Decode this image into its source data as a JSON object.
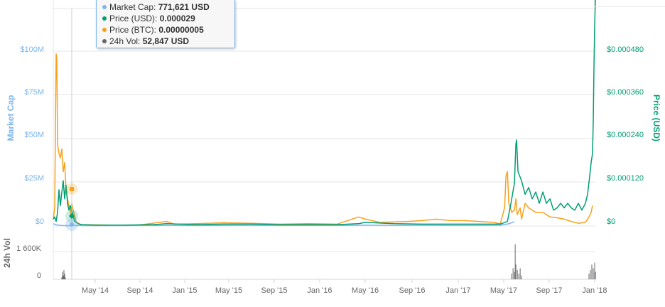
{
  "tooltip": {
    "rows": [
      {
        "label": "Market Cap:",
        "value": "771,621 USD",
        "color": "#7cb5ec"
      },
      {
        "label": "Price (USD):",
        "value": "0.000029",
        "color": "#009e73"
      },
      {
        "label": "Price (BTC):",
        "value": "0.00000005",
        "color": "#f7a21b"
      },
      {
        "label": "24h Vol:",
        "value": "52,847 USD",
        "color": "#666666"
      }
    ]
  },
  "chart_data": {
    "type": "line",
    "x_ticks": [
      "May '14",
      "Sep '14",
      "Jan '15",
      "May '15",
      "Sep '15",
      "Jan '16",
      "May '16",
      "Sep '16",
      "Jan '17",
      "May '17",
      "Sep '17",
      "Jan '18"
    ],
    "left_axis": {
      "label": "Market Cap",
      "ticks": [
        "$0",
        "$25M",
        "$50M",
        "$75M",
        "$100M"
      ],
      "range": [
        0,
        100000000
      ],
      "color": "#7cb5ec"
    },
    "right_axis": {
      "label": "Price (USD)",
      "ticks": [
        "$0",
        "$0.000120",
        "$0.000240",
        "$0.000360",
        "$0.000480"
      ],
      "range": [
        0,
        0.00048
      ],
      "color": "#009e73"
    },
    "volume_axis": {
      "label": "24h Vol",
      "ticks": [
        "0",
        "1 600K"
      ]
    },
    "series": [
      {
        "name": "Market Cap",
        "color": "#7cb5ec",
        "points": [
          [
            0,
            1000000
          ],
          [
            5,
            500000
          ],
          [
            10,
            300000
          ],
          [
            14,
            200000
          ],
          [
            18,
            150000
          ],
          [
            20,
            120000
          ],
          [
            22,
            100000
          ],
          [
            25,
            150000
          ],
          [
            27,
            771621
          ],
          [
            30,
            300000
          ],
          [
            40,
            200000
          ],
          [
            60,
            150000
          ],
          [
            100,
            200000
          ],
          [
            140,
            250000
          ],
          [
            160,
            300000
          ],
          [
            200,
            200000
          ],
          [
            240,
            250000
          ],
          [
            280,
            300000
          ],
          [
            320,
            250000
          ],
          [
            360,
            300000
          ],
          [
            400,
            250000
          ],
          [
            440,
            400000
          ],
          [
            480,
            300000
          ],
          [
            520,
            350000
          ],
          [
            560,
            300000
          ],
          [
            600,
            300000
          ],
          [
            630,
            350000
          ],
          [
            642,
            1000000
          ],
          [
            650,
            2000000
          ]
        ]
      },
      {
        "name": "Price (USD)",
        "color": "#009e73",
        "points": [
          [
            0,
            1.5e-05
          ],
          [
            2,
            2e-05
          ],
          [
            4,
            1e-05
          ],
          [
            6,
            3e-05
          ],
          [
            8,
            8e-05
          ],
          [
            10,
            4.5e-05
          ],
          [
            12,
            7.5e-05
          ],
          [
            14,
            0.0001
          ],
          [
            16,
            6e-05
          ],
          [
            18,
            9e-05
          ],
          [
            20,
            5e-05
          ],
          [
            22,
            3.5e-05
          ],
          [
            24,
            4.5e-05
          ],
          [
            26,
            3.3e-05
          ],
          [
            27,
            2.9e-05
          ],
          [
            30,
            1e-05
          ],
          [
            35,
            5e-06
          ],
          [
            40,
            3e-06
          ],
          [
            60,
            2e-06
          ],
          [
            100,
            2e-06
          ],
          [
            140,
            3e-06
          ],
          [
            160,
            5e-06
          ],
          [
            200,
            3e-06
          ],
          [
            240,
            4e-06
          ],
          [
            280,
            4e-06
          ],
          [
            320,
            3e-06
          ],
          [
            360,
            3e-06
          ],
          [
            400,
            3e-06
          ],
          [
            430,
            5e-06
          ],
          [
            440,
            8e-06
          ],
          [
            480,
            5e-06
          ],
          [
            520,
            4e-06
          ],
          [
            560,
            4e-06
          ],
          [
            600,
            4e-06
          ],
          [
            630,
            4e-06
          ],
          [
            640,
            1e-05
          ],
          [
            645,
            5e-05
          ],
          [
            650,
            9.5e-05
          ],
          [
            652,
            0.00018
          ],
          [
            653,
            0.00019
          ],
          [
            655,
            0.00012
          ],
          [
            660,
            0.0001
          ],
          [
            665,
            7e-05
          ],
          [
            670,
            8.5e-05
          ],
          [
            675,
            6e-05
          ],
          [
            680,
            7.5e-05
          ],
          [
            685,
            5e-05
          ],
          [
            690,
            7.5e-05
          ],
          [
            695,
            5e-05
          ],
          [
            700,
            6e-05
          ],
          [
            705,
            3.5e-05
          ],
          [
            710,
            4e-05
          ],
          [
            715,
            5e-05
          ],
          [
            720,
            4e-05
          ],
          [
            725,
            5e-05
          ],
          [
            730,
            4e-05
          ],
          [
            735,
            3.5e-05
          ],
          [
            740,
            5e-05
          ],
          [
            745,
            3.5e-05
          ],
          [
            750,
            5e-05
          ],
          [
            753,
            7e-05
          ],
          [
            756,
            0.00011
          ],
          [
            758,
            0.00014
          ],
          [
            760,
            0.00016
          ],
          [
            761,
            0.00023
          ],
          [
            762,
            0.00035
          ],
          [
            763,
            0.00044
          ],
          [
            764,
            0.0005
          ]
        ]
      },
      {
        "name": "Price (BTC)",
        "color": "#f7a21b",
        "points": [
          [
            0,
            1.5e-05
          ],
          [
            2,
            4e-05
          ],
          [
            4,
            0.00038
          ],
          [
            5,
            0.00037
          ],
          [
            6,
            0.00018
          ],
          [
            8,
            0.00016
          ],
          [
            10,
            0.00015
          ],
          [
            12,
            0.00017
          ],
          [
            14,
            0.00012
          ],
          [
            16,
            0.00014
          ],
          [
            18,
            8e-05
          ],
          [
            20,
            6e-05
          ],
          [
            22,
            4.5e-05
          ],
          [
            24,
            4e-05
          ],
          [
            25,
            1.8e-05
          ],
          [
            26,
            5e-05
          ],
          [
            28,
            3.5e-05
          ],
          [
            32,
            1e-05
          ],
          [
            36,
            5e-06
          ],
          [
            40,
            3e-06
          ],
          [
            80,
            2e-06
          ],
          [
            120,
            2e-06
          ],
          [
            160,
            1e-05
          ],
          [
            170,
            4e-06
          ],
          [
            200,
            5e-06
          ],
          [
            240,
            7e-06
          ],
          [
            280,
            6e-06
          ],
          [
            320,
            4e-06
          ],
          [
            360,
            5e-06
          ],
          [
            400,
            4e-06
          ],
          [
            430,
            2e-05
          ],
          [
            440,
            1.5e-05
          ],
          [
            460,
            8e-06
          ],
          [
            500,
            1e-05
          ],
          [
            520,
            1.2e-05
          ],
          [
            540,
            1.5e-05
          ],
          [
            560,
            1.2e-05
          ],
          [
            580,
            1.2e-05
          ],
          [
            600,
            1e-05
          ],
          [
            620,
            8e-06
          ],
          [
            630,
            5e-06
          ],
          [
            636,
            4e-05
          ],
          [
            638,
            0.00011
          ],
          [
            640,
            0.00012
          ],
          [
            642,
            5e-05
          ],
          [
            646,
            3e-05
          ],
          [
            650,
            3.5e-05
          ],
          [
            652,
            6e-05
          ],
          [
            654,
            2.5e-05
          ],
          [
            658,
            4e-05
          ],
          [
            660,
            1.5e-05
          ],
          [
            665,
            5e-05
          ],
          [
            670,
            4e-05
          ],
          [
            680,
            3e-05
          ],
          [
            690,
            3e-05
          ],
          [
            700,
            2e-05
          ],
          [
            710,
            1.8e-05
          ],
          [
            720,
            1.5e-05
          ],
          [
            730,
            1e-05
          ],
          [
            740,
            6e-06
          ],
          [
            750,
            8e-06
          ],
          [
            755,
            2e-05
          ],
          [
            758,
            3e-05
          ],
          [
            760,
            4.5e-05
          ]
        ]
      },
      {
        "name": "24h Vol",
        "color": "#666666",
        "points": [
          [
            12,
            0.1
          ],
          [
            13,
            0.4
          ],
          [
            14,
            0.2
          ],
          [
            15,
            0.5
          ],
          [
            16,
            0.3
          ],
          [
            17,
            0.1
          ],
          [
            646,
            0.3
          ],
          [
            648,
            0.6
          ],
          [
            650,
            0.4
          ],
          [
            651,
            1.9
          ],
          [
            652,
            0.8
          ],
          [
            654,
            0.5
          ],
          [
            656,
            0.3
          ],
          [
            658,
            0.6
          ],
          [
            660,
            0.2
          ],
          [
            755,
            0.3
          ],
          [
            757,
            0.5
          ],
          [
            759,
            0.8
          ],
          [
            761,
            0.6
          ],
          [
            763,
            0.9
          ],
          [
            764,
            0.4
          ]
        ]
      }
    ]
  }
}
